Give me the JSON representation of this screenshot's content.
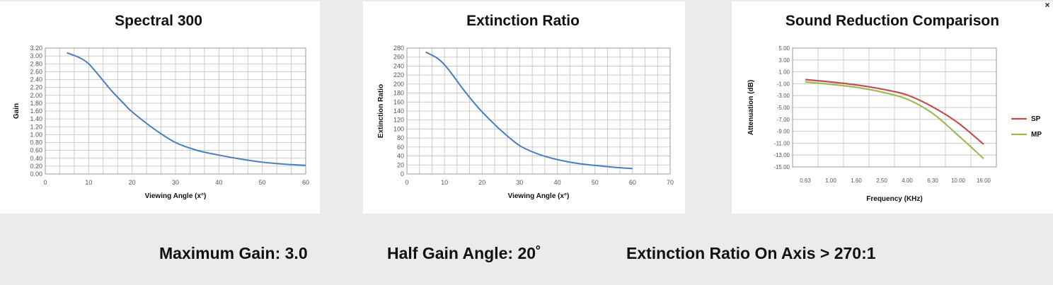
{
  "footer": {
    "max_gain": "Maximum Gain: 3.0",
    "half_gain_angle": "Half Gain Angle: 20˚",
    "extinction_on_axis": "Extinction Ratio On Axis > 270:1"
  },
  "close_label": "×",
  "colors": {
    "line_blue": "#4a7ebb",
    "sp_red": "#c0504d",
    "mp_green": "#9bbb59",
    "grid": "#bfbfbf"
  },
  "chart_data": [
    {
      "type": "line",
      "title": "Spectral 300",
      "xlabel": "Viewing Angle (x°)",
      "ylabel": "Gain",
      "xlim": [
        0,
        60
      ],
      "ylim": [
        0,
        3.2
      ],
      "x_ticks": [
        "0",
        "10",
        "20",
        "30",
        "40",
        "50",
        "60"
      ],
      "y_ticks": [
        "0.00",
        "0.20",
        "0.40",
        "0.60",
        "0.80",
        "1.00",
        "1.20",
        "1.40",
        "1.60",
        "1.80",
        "2.00",
        "2.20",
        "2.40",
        "2.60",
        "2.80",
        "3.00",
        "3.20"
      ],
      "x": [
        5,
        8,
        10,
        12,
        15,
        18,
        20,
        25,
        30,
        35,
        40,
        45,
        50,
        55,
        60
      ],
      "y": [
        3.08,
        2.95,
        2.8,
        2.55,
        2.15,
        1.8,
        1.58,
        1.15,
        0.8,
        0.6,
        0.48,
        0.38,
        0.3,
        0.25,
        0.22
      ],
      "grid": true
    },
    {
      "type": "line",
      "title": "Extinction Ratio",
      "xlabel": "Viewing Angle (x°)",
      "ylabel": "Extinction Ratio",
      "xlim": [
        0,
        70
      ],
      "ylim": [
        0,
        280
      ],
      "x_ticks": [
        "0",
        "10",
        "20",
        "30",
        "40",
        "50",
        "60",
        "70"
      ],
      "y_ticks": [
        "0",
        "20",
        "40",
        "60",
        "80",
        "100",
        "120",
        "140",
        "160",
        "180",
        "200",
        "220",
        "240",
        "260",
        "280"
      ],
      "x": [
        5,
        8,
        10,
        12,
        15,
        18,
        20,
        25,
        30,
        35,
        40,
        45,
        50,
        55,
        60
      ],
      "y": [
        271,
        258,
        243,
        222,
        188,
        157,
        138,
        97,
        63,
        44,
        32,
        24,
        19,
        15,
        12
      ],
      "grid": true
    },
    {
      "type": "line",
      "title": "Sound Reduction Comparison",
      "xlabel": "Frequency (KHz)",
      "ylabel": "Attenuation (dB)",
      "categories": [
        "0.63",
        "1.00",
        "1.60",
        "2.50",
        "4.00",
        "6.30",
        "10.00",
        "16.00"
      ],
      "ylim": [
        -15,
        5
      ],
      "y_ticks": [
        "5.00",
        "3.00",
        "1.00",
        "-1.00",
        "-3.00",
        "-5.00",
        "-7.00",
        "-9.00",
        "-11.00",
        "-13.00",
        "-15.00"
      ],
      "series": [
        {
          "name": "SP",
          "values": [
            -0.3,
            -0.7,
            -1.2,
            -1.9,
            -2.9,
            -4.9,
            -7.6,
            -11.2
          ]
        },
        {
          "name": "MP",
          "values": [
            -0.7,
            -1.1,
            -1.6,
            -2.4,
            -3.6,
            -6.0,
            -9.7,
            -13.6
          ]
        }
      ],
      "legend": "right",
      "grid": true
    }
  ]
}
